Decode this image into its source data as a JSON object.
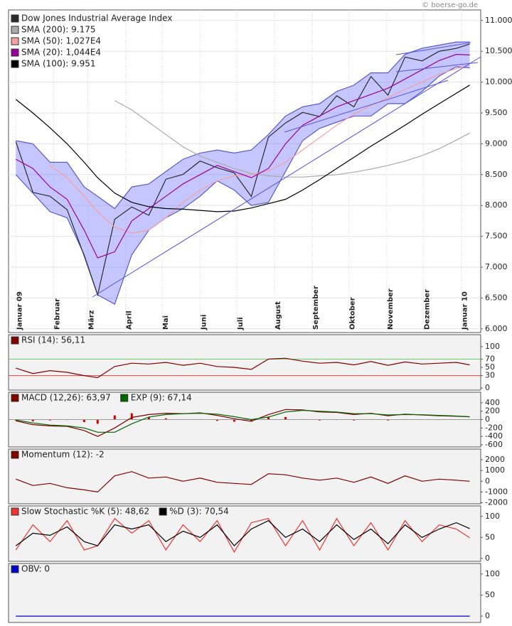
{
  "chart_data": [
    {
      "type": "line",
      "source": "© boerse-go.de",
      "x": [
        0,
        14,
        28,
        42,
        56,
        67,
        81,
        95,
        109,
        123,
        137,
        151,
        165,
        179,
        193,
        207,
        221,
        235,
        249,
        263,
        277,
        291,
        305,
        319,
        333,
        347,
        361,
        372
      ],
      "xlim": [
        -6,
        381
      ],
      "xticks": [
        {
          "value": 0,
          "label": "Januar 09"
        },
        {
          "value": 31,
          "label": "Februar"
        },
        {
          "value": 59,
          "label": "März"
        },
        {
          "value": 90,
          "label": "April"
        },
        {
          "value": 120,
          "label": "Mai"
        },
        {
          "value": 151,
          "label": "Juni"
        },
        {
          "value": 181,
          "label": "Juli"
        },
        {
          "value": 212,
          "label": "August"
        },
        {
          "value": 243,
          "label": "September"
        },
        {
          "value": 273,
          "label": "Oktober"
        },
        {
          "value": 304,
          "label": "November"
        },
        {
          "value": 334,
          "label": "Dezember"
        },
        {
          "value": 365,
          "label": "Januar 10"
        }
      ],
      "ylim": [
        5940,
        11170
      ],
      "yticks": [
        {
          "value": 6000,
          "label": "6.000"
        },
        {
          "value": 6500,
          "label": "6.500"
        },
        {
          "value": 7000,
          "label": "7.000"
        },
        {
          "value": 7500,
          "label": "7.500"
        },
        {
          "value": 8000,
          "label": "8.000"
        },
        {
          "value": 8500,
          "label": "8.500"
        },
        {
          "value": 9000,
          "label": "9.000"
        },
        {
          "value": 9500,
          "label": "9.500"
        },
        {
          "value": 10000,
          "label": "10.000"
        },
        {
          "value": 10500,
          "label": "10.500"
        },
        {
          "value": 11000,
          "label": "11.000"
        }
      ],
      "grid": true,
      "bands": {
        "color": "#8080ff",
        "upper": [
          9050,
          9000,
          8700,
          8700,
          8300,
          8150,
          7950,
          8300,
          8350,
          8550,
          8750,
          8850,
          8900,
          8850,
          8900,
          9150,
          9450,
          9600,
          9650,
          9850,
          9950,
          10150,
          10150,
          10450,
          10550,
          10600,
          10650,
          10650
        ],
        "lower": [
          8500,
          8200,
          7900,
          7800,
          7200,
          6550,
          6400,
          7200,
          7600,
          7800,
          7950,
          8150,
          8400,
          8250,
          8000,
          8050,
          8550,
          9050,
          9250,
          9350,
          9450,
          9450,
          9650,
          9650,
          9850,
          10100,
          10250,
          10230
        ]
      },
      "series": [
        {
          "name": "Dow Jones Industrial Average Index",
          "color": "#2a2a2a",
          "values": [
            9034,
            8212,
            8150,
            7932,
            7182,
            6547,
            7776,
            7975,
            7841,
            8426,
            8504,
            8721,
            8612,
            8529,
            8146,
            9108,
            9337,
            9509,
            9441,
            9779,
            9599,
            10092,
            9789,
            10406,
            10344,
            10501,
            10547,
            10618
          ]
        },
        {
          "name": "SMA (200): 9.175",
          "color": "#aaaaaa",
          "values": [
            null,
            null,
            null,
            null,
            null,
            null,
            9700,
            9550,
            9350,
            9150,
            8950,
            8800,
            8700,
            8600,
            8520,
            8480,
            8460,
            8460,
            8480,
            8500,
            8540,
            8590,
            8650,
            8720,
            8810,
            8920,
            9060,
            9175
          ]
        },
        {
          "name": "SMA (50): 1,027E4",
          "color": "#f4a0a0",
          "values": [
            null,
            null,
            8650,
            8450,
            8150,
            7900,
            7650,
            7550,
            7600,
            7800,
            8050,
            8250,
            8400,
            8480,
            8500,
            8560,
            8700,
            8900,
            9100,
            9300,
            9480,
            9620,
            9750,
            9880,
            10000,
            10130,
            10220,
            10270
          ]
        },
        {
          "name": "SMA (20): 1,044E4",
          "color": "#990099",
          "values": [
            8750,
            8600,
            8300,
            8100,
            7600,
            7150,
            7250,
            7750,
            7950,
            8150,
            8350,
            8500,
            8650,
            8550,
            8450,
            8600,
            9000,
            9300,
            9450,
            9600,
            9700,
            9800,
            9900,
            10050,
            10200,
            10350,
            10450,
            10440
          ]
        },
        {
          "name": "SMA (100): 9.951",
          "color": "#000000",
          "values": [
            9720,
            9500,
            9260,
            9000,
            8700,
            8450,
            8200,
            8050,
            7980,
            7950,
            7940,
            7920,
            7900,
            7910,
            7960,
            8030,
            8100,
            8250,
            8420,
            8600,
            8780,
            8960,
            9130,
            9300,
            9480,
            9650,
            9820,
            9951
          ]
        }
      ]
    },
    {
      "type": "line",
      "ylim": [
        -5,
        129
      ],
      "yticks": [
        0,
        30,
        50,
        70,
        100
      ],
      "reference_lines": [
        {
          "value": 70,
          "color": "#66cc66"
        },
        {
          "value": 30,
          "color": "#dd4444"
        }
      ],
      "series": [
        {
          "name": "RSI (14): 56,11",
          "color": "#800000",
          "values": [
            48,
            35,
            42,
            38,
            30,
            25,
            52,
            60,
            58,
            62,
            55,
            60,
            52,
            50,
            45,
            70,
            72,
            65,
            60,
            62,
            56,
            64,
            55,
            63,
            58,
            60,
            62,
            56
          ]
        }
      ]
    },
    {
      "type": "line",
      "ylim": [
        -650,
        650
      ],
      "yticks": [
        -600,
        -400,
        -200,
        0,
        200,
        400
      ],
      "histogram": {
        "color": "#cc0000",
        "values": [
          -20,
          -40,
          -20,
          -10,
          -60,
          -100,
          100,
          150,
          60,
          30,
          0,
          10,
          -30,
          -50,
          -40,
          60,
          60,
          10,
          -20,
          -10,
          -20,
          10,
          -20,
          10,
          -5,
          -10,
          -5,
          -3
        ]
      },
      "series": [
        {
          "name": "MACD (12,26): 63,97",
          "color": "#800000",
          "values": [
            -30,
            -120,
            -150,
            -160,
            -260,
            -400,
            -200,
            50,
            120,
            150,
            140,
            160,
            100,
            20,
            -40,
            120,
            240,
            230,
            180,
            170,
            120,
            150,
            90,
            130,
            110,
            90,
            80,
            64
          ]
        },
        {
          "name": "EXP (9): 67,14",
          "color": "#006600",
          "values": [
            -10,
            -80,
            -130,
            -150,
            -200,
            -300,
            -300,
            -100,
            60,
            120,
            140,
            150,
            130,
            70,
            0,
            60,
            180,
            220,
            200,
            180,
            140,
            140,
            110,
            120,
            115,
            100,
            85,
            67
          ]
        }
      ]
    },
    {
      "type": "line",
      "ylim": [
        -2100,
        3000
      ],
      "yticks": [
        -2000,
        -1000,
        0,
        1000,
        2000
      ],
      "series": [
        {
          "name": "Momentum (12): -2",
          "color": "#800000",
          "values": [
            200,
            -400,
            -200,
            -600,
            -800,
            -1000,
            500,
            900,
            300,
            400,
            0,
            300,
            -100,
            -200,
            -300,
            700,
            600,
            300,
            100,
            300,
            -100,
            400,
            -200,
            500,
            0,
            200,
            100,
            -2
          ]
        }
      ]
    },
    {
      "type": "line",
      "ylim": [
        -7,
        125
      ],
      "yticks": [
        0,
        50,
        100
      ],
      "series": [
        {
          "name": "Slow Stochastic %K (5): 48,62",
          "color": "#ee3333",
          "values": [
            20,
            80,
            40,
            90,
            20,
            30,
            95,
            60,
            90,
            20,
            80,
            40,
            90,
            15,
            85,
            95,
            30,
            90,
            20,
            95,
            30,
            85,
            20,
            90,
            40,
            80,
            70,
            49
          ]
        },
        {
          "name": "%D (3): 70,54",
          "color": "#000000",
          "values": [
            30,
            60,
            55,
            75,
            40,
            30,
            80,
            70,
            80,
            40,
            65,
            50,
            80,
            30,
            70,
            90,
            50,
            70,
            40,
            80,
            45,
            70,
            35,
            80,
            50,
            70,
            85,
            71
          ]
        }
      ]
    },
    {
      "type": "line",
      "ylim": [
        -15,
        125
      ],
      "yticks": [
        0,
        50,
        100
      ],
      "series": [
        {
          "name": "OBV: 0",
          "color": "#0000cc",
          "values": [
            0,
            0,
            0,
            0,
            0,
            0,
            0,
            0,
            0,
            0,
            0,
            0,
            0,
            0,
            0,
            0,
            0,
            0,
            0,
            0,
            0,
            0,
            0,
            0,
            0,
            0,
            0,
            0
          ]
        }
      ]
    }
  ]
}
